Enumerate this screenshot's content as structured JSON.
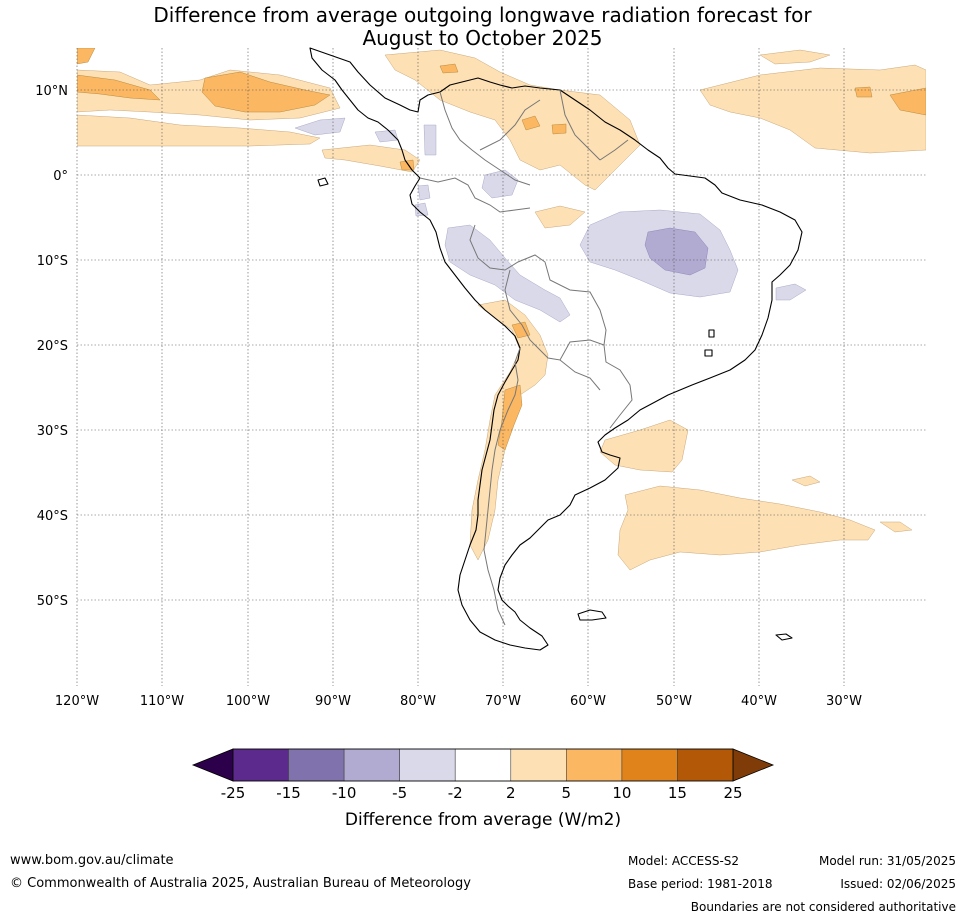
{
  "title_line1": "Difference from average outgoing longwave radiation forecast for",
  "title_line2": "August to October 2025",
  "lat_labels": [
    "10°N",
    "0°",
    "10°S",
    "20°S",
    "30°S",
    "40°S",
    "50°S"
  ],
  "lon_labels": [
    "120°W",
    "110°W",
    "100°W",
    "90°W",
    "80°W",
    "70°W",
    "60°W",
    "50°W",
    "40°W",
    "30°W"
  ],
  "colorbar": {
    "label": "Difference from average (W/m2)",
    "ticks": [
      "-25",
      "-15",
      "-10",
      "-5",
      "-2",
      "2",
      "5",
      "10",
      "15",
      "25"
    ],
    "colors": [
      "#5b2a8c",
      "#8072ac",
      "#b1aad1",
      "#d9d9ea",
      "#ffffff",
      "#fde0b3",
      "#fbb762",
      "#e0831a",
      "#b35806"
    ],
    "under_color": "#2d004b",
    "over_color": "#7f3b08"
  },
  "footer": {
    "url": "www.bom.gov.au/climate",
    "copyright": "© Commonwealth of Australia 2025, Australian Bureau of Meteorology",
    "model": "Model: ACCESS-S2",
    "base_period": "Base period: 1981-2018",
    "model_run": "Model run: 31/05/2025",
    "issued": "Issued: 02/06/2025",
    "disclaimer": "Boundaries are not considered authoritative"
  }
}
